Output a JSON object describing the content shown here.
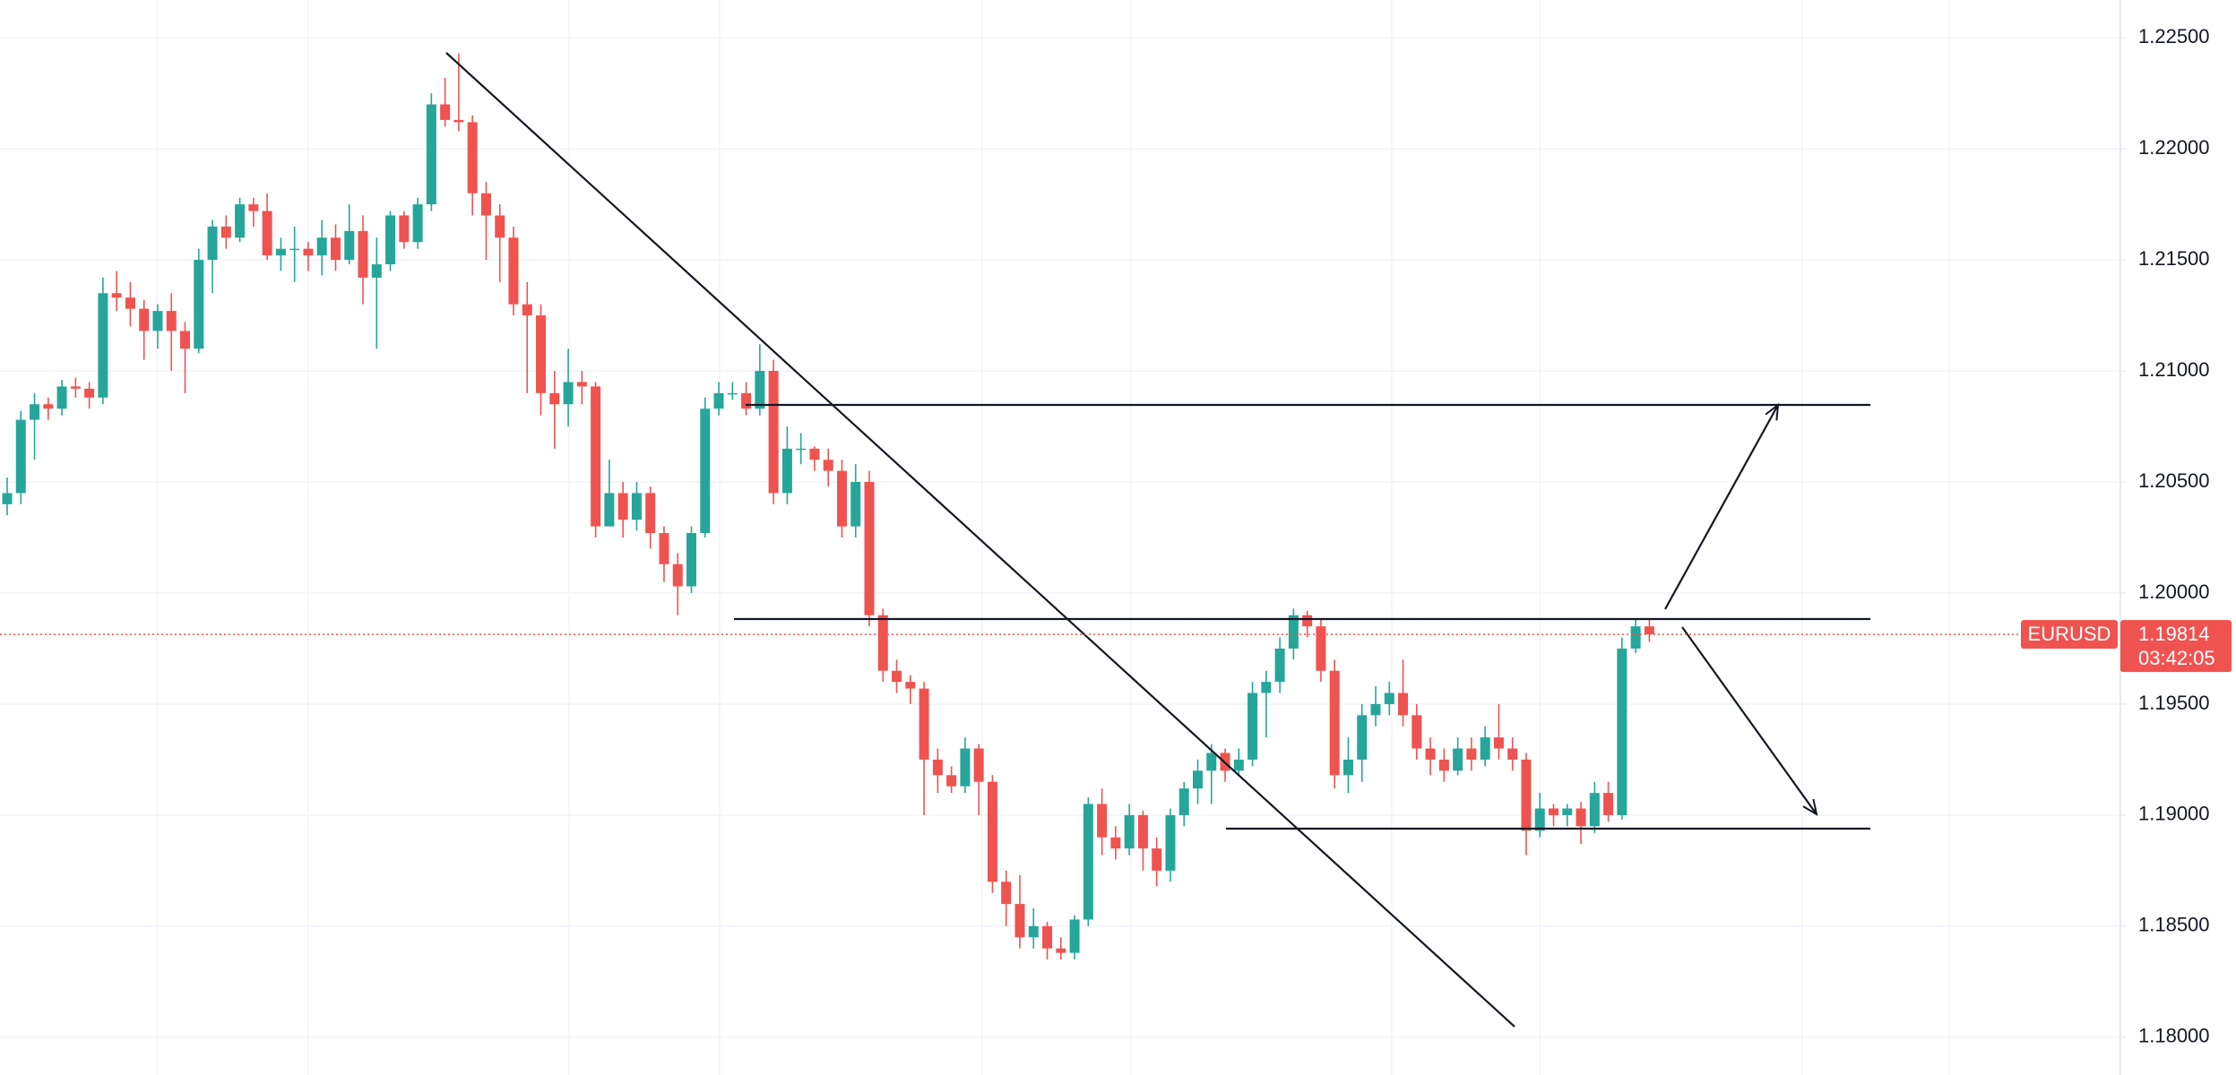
{
  "chart_data": {
    "type": "candlestick",
    "symbol": "EURUSD",
    "countdown": "03:42:05",
    "last_price": 1.19814,
    "up_color": "#26a69a",
    "down_color": "#ef5350",
    "ylim": [
      1.1783,
      1.2267
    ],
    "yticks": [
      {
        "value": 1.18,
        "label": "1.18000"
      },
      {
        "value": 1.185,
        "label": "1.18500"
      },
      {
        "value": 1.19,
        "label": "1.19000"
      },
      {
        "value": 1.195,
        "label": "1.19500"
      },
      {
        "value": 1.2,
        "label": "1.20000"
      },
      {
        "value": 1.205,
        "label": "1.20500"
      },
      {
        "value": 1.21,
        "label": "1.21000"
      },
      {
        "value": 1.215,
        "label": "1.21500"
      },
      {
        "value": 1.22,
        "label": "1.22000"
      },
      {
        "value": 1.225,
        "label": "1.22500"
      }
    ],
    "grid": true,
    "open": [
      1.204,
      1.2045,
      1.2078,
      1.2085,
      1.2083,
      1.2093,
      1.2092,
      1.2088,
      1.2135,
      1.2133,
      1.2128,
      1.2118,
      1.2127,
      1.2118,
      1.211,
      1.215,
      1.2165,
      1.216,
      1.2175,
      1.2172,
      1.2152,
      1.2155,
      1.2155,
      1.2152,
      1.216,
      1.215,
      1.2163,
      1.2142,
      1.2148,
      1.217,
      1.2158,
      1.2175,
      1.222,
      1.2213,
      1.2212,
      1.218,
      1.217,
      1.216,
      1.213,
      1.2125,
      1.209,
      1.2085,
      1.2095,
      1.2093,
      1.203,
      1.2045,
      1.2033,
      1.2045,
      1.2027,
      1.2013,
      1.2003,
      1.2027,
      1.2083,
      1.209,
      1.209,
      1.2083,
      1.21,
      1.2045,
      1.2065,
      1.2065,
      1.206,
      1.2055,
      1.203,
      1.205,
      1.199,
      1.1965,
      1.196,
      1.1957,
      1.1925,
      1.1918,
      1.1913,
      1.193,
      1.1915,
      1.187,
      1.186,
      1.1845,
      1.185,
      1.184,
      1.1838,
      1.1853,
      1.1905,
      1.189,
      1.1885,
      1.19,
      1.1885,
      1.1875,
      1.19,
      1.1912,
      1.192,
      1.1928,
      1.192,
      1.1925,
      1.1955,
      1.196,
      1.1975,
      1.199,
      1.1985,
      1.1965,
      1.1918,
      1.1925,
      1.1945,
      1.195,
      1.1955,
      1.1945,
      1.193,
      1.1925,
      1.192,
      1.193,
      1.1925,
      1.1935,
      1.193,
      1.1925,
      1.1893,
      1.1903,
      1.19,
      1.1903,
      1.1895,
      1.191,
      1.19,
      1.1975,
      1.1985
    ],
    "high": [
      1.2052,
      1.2082,
      1.209,
      1.2088,
      1.2096,
      1.2097,
      1.2095,
      1.2142,
      1.2145,
      1.214,
      1.2132,
      1.213,
      1.2135,
      1.2122,
      1.2155,
      1.2168,
      1.217,
      1.2178,
      1.2178,
      1.218,
      1.216,
      1.2165,
      1.2158,
      1.2168,
      1.2166,
      1.2175,
      1.217,
      1.216,
      1.2172,
      1.2172,
      1.2178,
      1.2225,
      1.2232,
      1.2243,
      1.2215,
      1.2185,
      1.2175,
      1.2165,
      1.214,
      1.213,
      1.21,
      1.211,
      1.21,
      1.2095,
      1.206,
      1.205,
      1.205,
      1.2048,
      1.203,
      1.2018,
      1.203,
      1.2088,
      1.2095,
      1.2095,
      1.2095,
      1.2112,
      1.2105,
      1.2075,
      1.2072,
      1.2066,
      1.2065,
      1.206,
      1.2058,
      1.2055,
      1.1993,
      1.197,
      1.1963,
      1.196,
      1.193,
      1.1922,
      1.1935,
      1.1932,
      1.1918,
      1.1875,
      1.1873,
      1.1858,
      1.1852,
      1.1845,
      1.1855,
      1.1908,
      1.1912,
      1.1895,
      1.1905,
      1.1902,
      1.189,
      1.1903,
      1.1915,
      1.1925,
      1.1932,
      1.193,
      1.193,
      1.196,
      1.1965,
      1.198,
      1.1993,
      1.1992,
      1.1988,
      1.197,
      1.1935,
      1.195,
      1.1958,
      1.196,
      1.197,
      1.195,
      1.1935,
      1.193,
      1.1935,
      1.1935,
      1.194,
      1.195,
      1.1935,
      1.1928,
      1.191,
      1.1905,
      1.1905,
      1.1906,
      1.1915,
      1.1915,
      1.198,
      1.1988,
      1.1988
    ],
    "low": [
      1.2035,
      1.204,
      1.206,
      1.2078,
      1.208,
      1.2088,
      1.2083,
      1.2085,
      1.2127,
      1.212,
      1.2105,
      1.211,
      1.21,
      1.209,
      1.2108,
      1.2135,
      1.2155,
      1.2158,
      1.2165,
      1.215,
      1.2145,
      1.214,
      1.2145,
      1.2143,
      1.2145,
      1.2148,
      1.213,
      1.211,
      1.2145,
      1.2155,
      1.2155,
      1.2172,
      1.221,
      1.2208,
      1.217,
      1.215,
      1.214,
      1.2125,
      1.209,
      1.208,
      1.2065,
      1.2075,
      1.2085,
      1.2025,
      1.203,
      1.2025,
      1.2028,
      1.202,
      1.2005,
      1.199,
      1.2,
      1.2025,
      1.208,
      1.2087,
      1.208,
      1.208,
      1.204,
      1.204,
      1.2058,
      1.2055,
      1.2048,
      1.2025,
      1.2025,
      1.1985,
      1.196,
      1.1955,
      1.195,
      1.19,
      1.191,
      1.191,
      1.191,
      1.19,
      1.1865,
      1.185,
      1.184,
      1.184,
      1.1835,
      1.1835,
      1.1835,
      1.185,
      1.1882,
      1.188,
      1.1882,
      1.1875,
      1.1868,
      1.187,
      1.1895,
      1.1905,
      1.1905,
      1.1915,
      1.1918,
      1.1922,
      1.1935,
      1.1955,
      1.197,
      1.198,
      1.196,
      1.1912,
      1.191,
      1.1915,
      1.194,
      1.1945,
      1.194,
      1.1925,
      1.1918,
      1.1915,
      1.1918,
      1.192,
      1.1922,
      1.1925,
      1.192,
      1.1882,
      1.189,
      1.1895,
      1.1895,
      1.1887,
      1.1892,
      1.1897,
      1.1898,
      1.1973,
      1.1978
    ],
    "close": [
      1.2045,
      1.2078,
      1.2085,
      1.2083,
      1.2093,
      1.2092,
      1.2088,
      1.2135,
      1.2133,
      1.2128,
      1.2118,
      1.2127,
      1.2118,
      1.211,
      1.215,
      1.2165,
      1.216,
      1.2175,
      1.2172,
      1.2152,
      1.2155,
      1.2155,
      1.2152,
      1.216,
      1.215,
      1.2163,
      1.2142,
      1.2148,
      1.217,
      1.2158,
      1.2175,
      1.222,
      1.2213,
      1.2212,
      1.218,
      1.217,
      1.216,
      1.213,
      1.2125,
      1.209,
      1.2085,
      1.2095,
      1.2093,
      1.203,
      1.2045,
      1.2033,
      1.2045,
      1.2027,
      1.2013,
      1.2003,
      1.2027,
      1.2083,
      1.209,
      1.209,
      1.2083,
      1.21,
      1.2045,
      1.2065,
      1.2065,
      1.206,
      1.2055,
      1.203,
      1.205,
      1.199,
      1.1965,
      1.196,
      1.1957,
      1.1925,
      1.1918,
      1.1913,
      1.193,
      1.1915,
      1.187,
      1.186,
      1.1845,
      1.185,
      1.184,
      1.1838,
      1.1853,
      1.1905,
      1.189,
      1.1885,
      1.19,
      1.1885,
      1.1875,
      1.19,
      1.1912,
      1.192,
      1.1928,
      1.192,
      1.1925,
      1.1955,
      1.196,
      1.1975,
      1.199,
      1.1985,
      1.1965,
      1.1918,
      1.1925,
      1.1945,
      1.195,
      1.1955,
      1.1945,
      1.193,
      1.1925,
      1.192,
      1.193,
      1.1925,
      1.1935,
      1.193,
      1.1925,
      1.1893,
      1.1903,
      1.19,
      1.1903,
      1.1895,
      1.191,
      1.19,
      1.1975,
      1.1985,
      1.19814
    ]
  }
}
